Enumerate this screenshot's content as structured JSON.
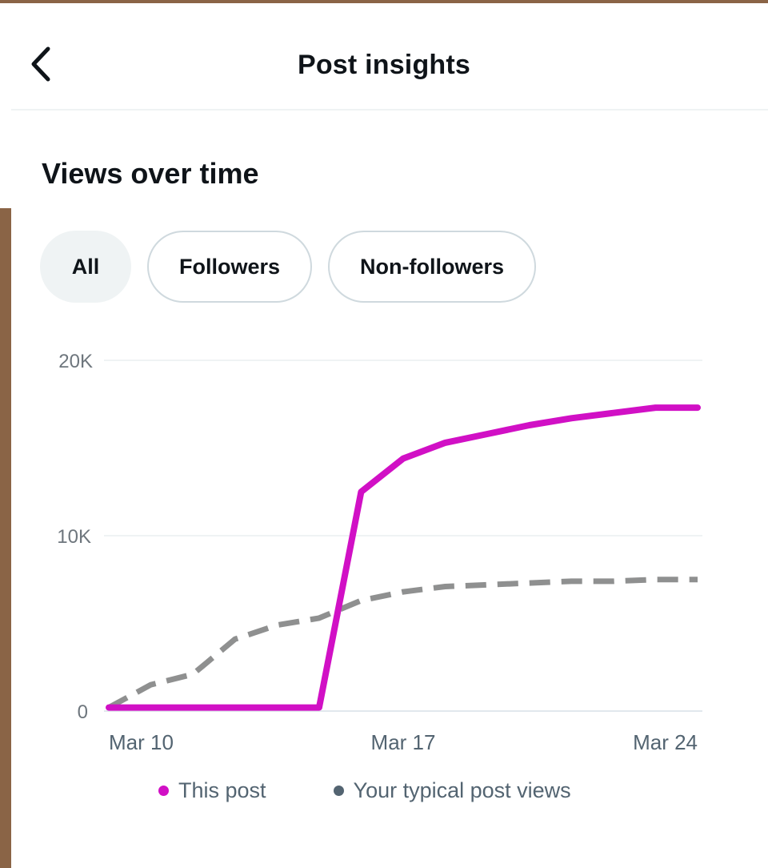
{
  "header": {
    "title": "Post insights",
    "back_icon": "chevron-left-icon"
  },
  "section": {
    "title": "Views over time"
  },
  "filters": [
    {
      "label": "All",
      "selected": true
    },
    {
      "label": "Followers",
      "selected": false
    },
    {
      "label": "Non-followers",
      "selected": false
    }
  ],
  "colors": {
    "this_post": "#d110c5",
    "typical": "#8f9090",
    "accent_bg": "#eff3f4"
  },
  "chart_data": {
    "type": "line",
    "x": [
      10,
      11,
      12,
      13,
      14,
      15,
      16,
      17,
      18,
      19,
      20,
      21,
      22,
      23,
      24
    ],
    "xticks": [
      {
        "value": 10,
        "label": "Mar 10"
      },
      {
        "value": 17,
        "label": "Mar 17"
      },
      {
        "value": 24,
        "label": "Mar 24"
      }
    ],
    "yticks": [
      {
        "value": 0,
        "label": "0"
      },
      {
        "value": 10000,
        "label": "10K"
      },
      {
        "value": 20000,
        "label": "20K"
      }
    ],
    "ylim": [
      0,
      20000
    ],
    "xlim": [
      10,
      24
    ],
    "grid": true,
    "legend_position": "bottom",
    "series": [
      {
        "name": "This post",
        "style": "solid",
        "values": [
          200,
          200,
          200,
          200,
          200,
          200,
          12500,
          14400,
          15300,
          15800,
          16300,
          16700,
          17000,
          17300,
          17300
        ]
      },
      {
        "name": "Your typical post views",
        "style": "dashed",
        "values": [
          200,
          1500,
          2100,
          4100,
          4900,
          5300,
          6300,
          6800,
          7100,
          7200,
          7300,
          7400,
          7400,
          7500,
          7500
        ]
      }
    ]
  }
}
